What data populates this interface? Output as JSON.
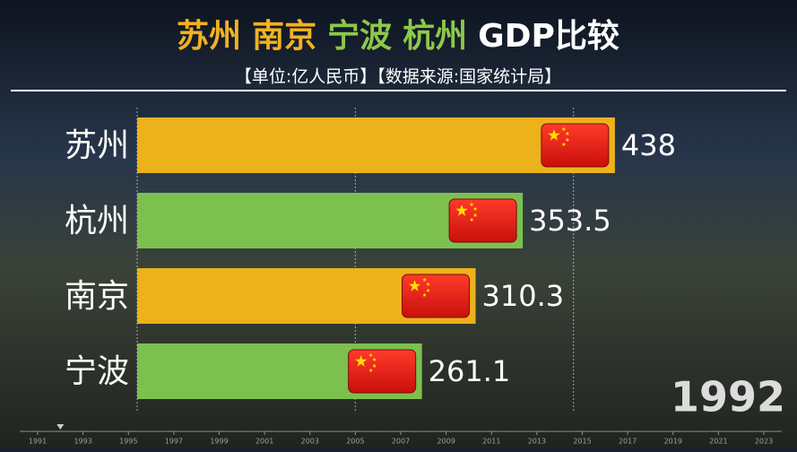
{
  "chart_data": {
    "type": "bar",
    "orientation": "horizontal",
    "title": [
      {
        "text": "苏州",
        "color": "#f2b21f"
      },
      {
        "text": "南京",
        "color": "#f2b21f"
      },
      {
        "text": "宁波",
        "color": "#8cc84b"
      },
      {
        "text": "杭州",
        "color": "#8cc84b"
      },
      {
        "text": "GDP比较",
        "color": "#ffffff"
      }
    ],
    "subtitle": "【单位:亿人民币】【数据来源:国家统计局】",
    "categories": [
      "苏州",
      "杭州",
      "南京",
      "宁波"
    ],
    "values": [
      438,
      353.5,
      310.3,
      261.1
    ],
    "colors": [
      "#ebb21c",
      "#7cc04f",
      "#ebb21c",
      "#7cc04f"
    ],
    "xlim": [
      0,
      600
    ],
    "xticks": [
      0,
      200,
      400
    ],
    "grid": true,
    "year": 1992,
    "timeline": {
      "xlim": [
        1991,
        2023
      ],
      "ticks": [
        1991,
        1993,
        1995,
        1997,
        1999,
        2001,
        2003,
        2005,
        2007,
        2009,
        2011,
        2013,
        2015,
        2017,
        2019,
        2021,
        2023
      ]
    }
  }
}
